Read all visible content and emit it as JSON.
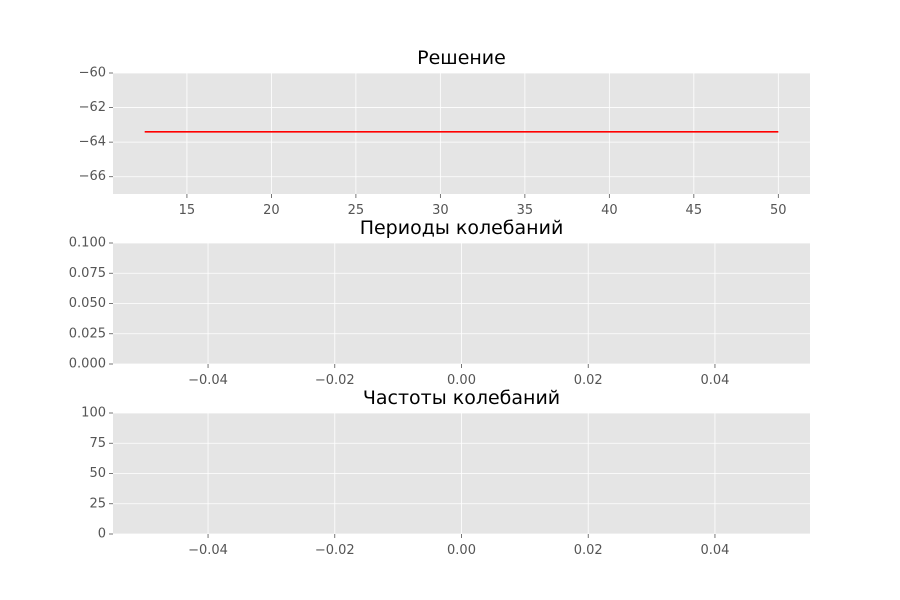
{
  "chart_data": [
    {
      "type": "line",
      "title": "Решение",
      "xlabel": "",
      "ylabel": "",
      "xlim": [
        10.625,
        51.875
      ],
      "ylim": [
        -67,
        -60
      ],
      "xticks": [
        15,
        20,
        25,
        30,
        35,
        40,
        45,
        50
      ],
      "xtick_labels": [
        "15",
        "20",
        "25",
        "30",
        "35",
        "40",
        "45",
        "50"
      ],
      "yticks": [
        -60,
        -62,
        -64,
        -66
      ],
      "ytick_labels": [
        "−60",
        "−62",
        "−64",
        "−66"
      ],
      "grid": true,
      "series": [
        {
          "x": [
            12.5,
            50
          ],
          "y": [
            -63.4,
            -63.4
          ],
          "color": "#ff0000"
        }
      ]
    },
    {
      "type": "line",
      "title": "Периоды колебаний",
      "xlabel": "",
      "ylabel": "",
      "xlim": [
        -0.055,
        0.055
      ],
      "ylim": [
        0,
        0.1
      ],
      "xticks": [
        -0.04,
        -0.02,
        0.0,
        0.02,
        0.04
      ],
      "xtick_labels": [
        "−0.04",
        "−0.02",
        "0.00",
        "0.02",
        "0.04"
      ],
      "yticks": [
        0,
        0.025,
        0.05,
        0.075,
        0.1
      ],
      "ytick_labels": [
        "0.000",
        "0.025",
        "0.050",
        "0.075",
        "0.100"
      ],
      "grid": true,
      "series": []
    },
    {
      "type": "line",
      "title": "Частоты колебаний",
      "xlabel": "",
      "ylabel": "",
      "xlim": [
        -0.055,
        0.055
      ],
      "ylim": [
        0,
        100
      ],
      "xticks": [
        -0.04,
        -0.02,
        0.0,
        0.02,
        0.04
      ],
      "xtick_labels": [
        "−0.04",
        "−0.02",
        "0.00",
        "0.02",
        "0.04"
      ],
      "yticks": [
        0,
        25,
        50,
        75,
        100
      ],
      "ytick_labels": [
        "0",
        "25",
        "50",
        "75",
        "100"
      ],
      "grid": true,
      "series": []
    }
  ]
}
